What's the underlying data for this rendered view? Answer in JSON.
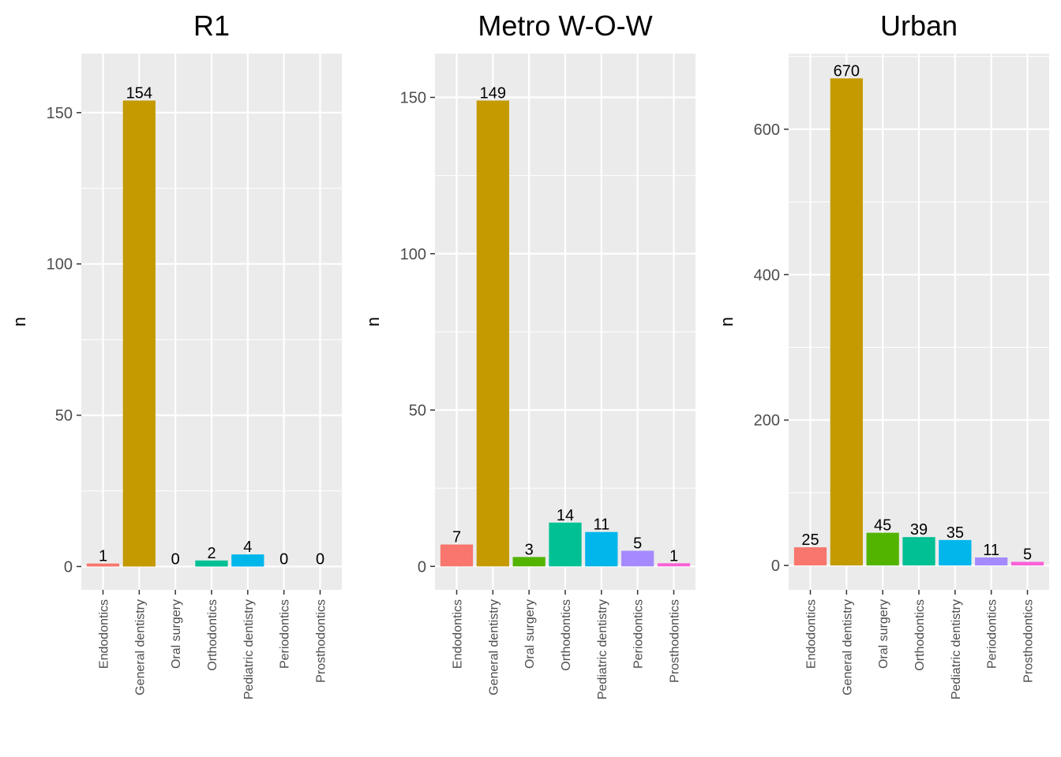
{
  "chart_data": [
    {
      "type": "bar",
      "title": "R1",
      "ylabel": "n",
      "xlabel": "",
      "ylim": [
        -7.7,
        169.5
      ],
      "yticks": [
        0,
        50,
        100,
        150
      ],
      "grid": true,
      "legend": "none",
      "categories": [
        "Endodontics",
        "General dentistry",
        "Oral surgery",
        "Orthodontics",
        "Pediatric dentistry",
        "Periodontics",
        "Prosthodontics"
      ],
      "values": [
        1,
        154,
        0,
        2,
        4,
        0,
        0
      ]
    },
    {
      "type": "bar",
      "title": "Metro W-O-W",
      "ylabel": "n",
      "xlabel": "",
      "ylim": [
        -7.5,
        164
      ],
      "yticks": [
        0,
        50,
        100,
        150
      ],
      "grid": true,
      "legend": "none",
      "categories": [
        "Endodontics",
        "General dentistry",
        "Oral surgery",
        "Orthodontics",
        "Pediatric dentistry",
        "Periodontics",
        "Prosthodontics"
      ],
      "values": [
        7,
        149,
        3,
        14,
        11,
        5,
        1
      ]
    },
    {
      "type": "bar",
      "title": "Urban",
      "ylabel": "n",
      "xlabel": "",
      "ylim": [
        -33.5,
        704
      ],
      "yticks": [
        0,
        200,
        400,
        600
      ],
      "grid": true,
      "legend": "none",
      "categories": [
        "Endodontics",
        "General dentistry",
        "Oral surgery",
        "Orthodontics",
        "Pediatric dentistry",
        "Periodontics",
        "Prosthodontics"
      ],
      "values": [
        25,
        670,
        45,
        39,
        35,
        11,
        5
      ]
    }
  ],
  "colors": {
    "panel_background": "#ebebeb",
    "grid": "#ffffff",
    "categories": [
      "#F8766D",
      "#C49A00",
      "#53B400",
      "#00C094",
      "#00B6EB",
      "#A58AFF",
      "#FB61D7"
    ]
  }
}
